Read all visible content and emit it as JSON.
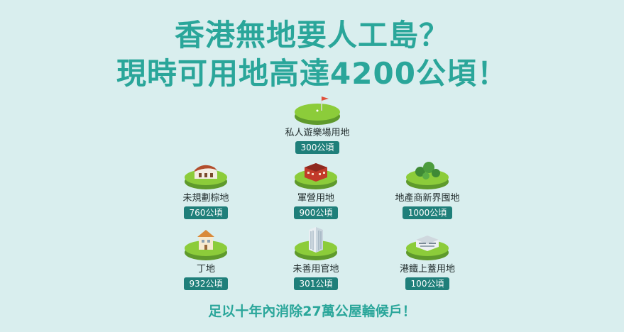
{
  "title_line1": "香港無地要人工島？",
  "title_line2": "現時可用地高達4200公頃！",
  "items": [
    {
      "label": "私人遊樂場用地",
      "value": "300公頃",
      "icon": "golf-course-icon"
    },
    {
      "label": "未規劃棕地",
      "value": "760公頃",
      "icon": "brownfield-warehouse-icon"
    },
    {
      "label": "軍營用地",
      "value": "900公頃",
      "icon": "barracks-icon"
    },
    {
      "label": "地產商新界囤地",
      "value": "1000公頃",
      "icon": "trees-land-icon"
    },
    {
      "label": "丁地",
      "value": "932公頃",
      "icon": "village-house-icon"
    },
    {
      "label": "未善用官地",
      "value": "301公頃",
      "icon": "office-building-icon"
    },
    {
      "label": "港鐵上蓋用地",
      "value": "100公頃",
      "icon": "mtr-depot-icon"
    }
  ],
  "footer": "足以十年內消除27萬公屋輪候戶！",
  "colors": {
    "background": "#d9eeee",
    "title": "#2aa69a",
    "badge": "#1f7f7a",
    "grass": "#8ccc3a"
  }
}
